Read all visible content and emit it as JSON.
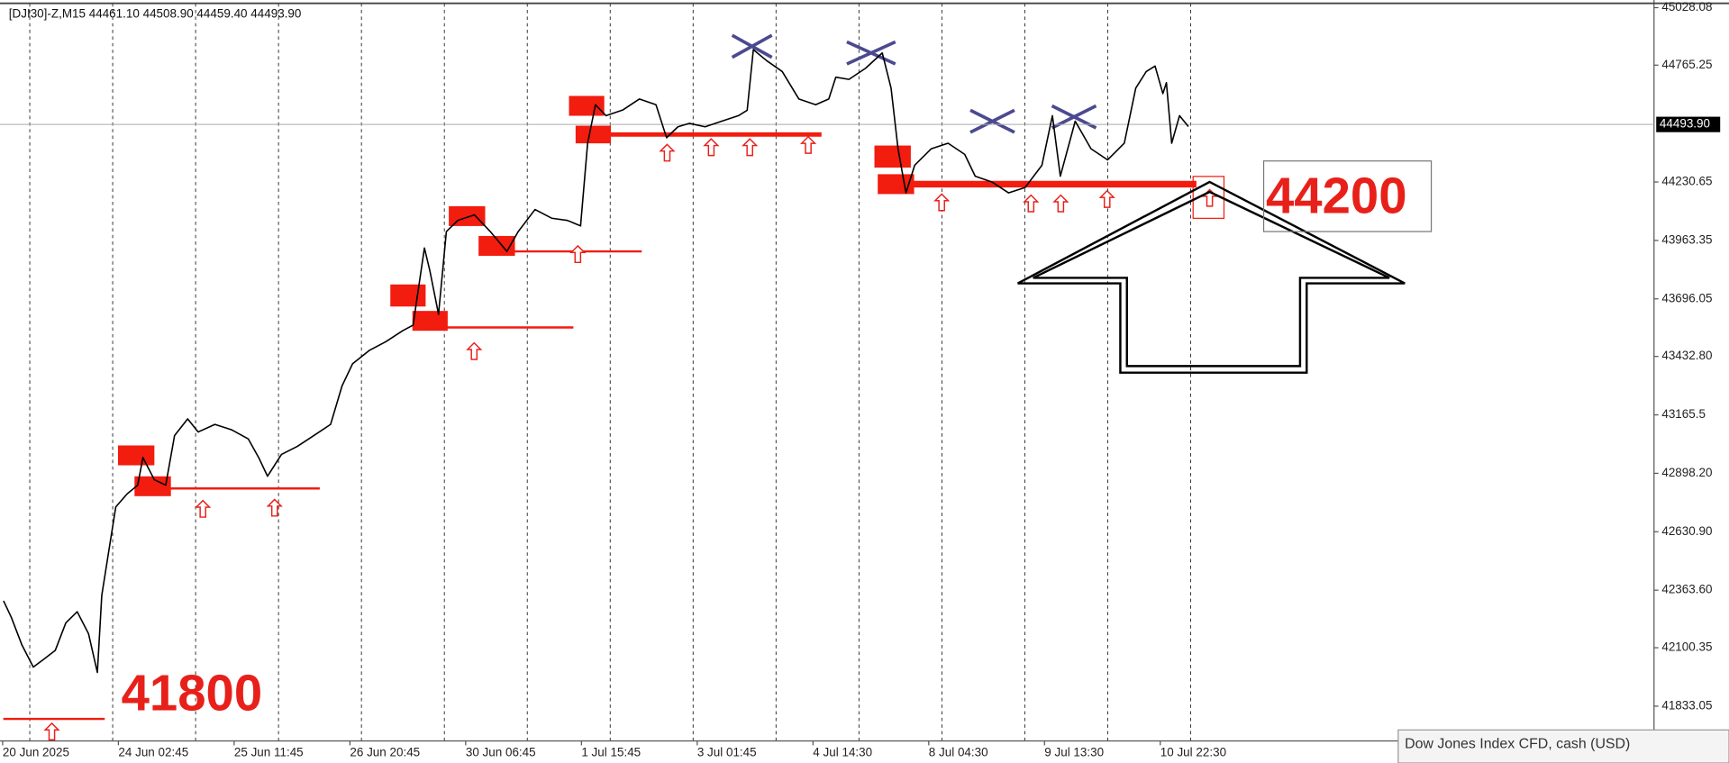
{
  "chart_data": {
    "type": "line",
    "header": "[DJI30]-Z,M15  44461.10 44508.90 44459.40 44493.90",
    "x": [
      4,
      13,
      25,
      38,
      50,
      63,
      75,
      88,
      101,
      111,
      116,
      126,
      132,
      145,
      157,
      163,
      176,
      189,
      199,
      214,
      226,
      245,
      264,
      283,
      295,
      305,
      321,
      339,
      358,
      377,
      390,
      402,
      421,
      440,
      459,
      471,
      484,
      490,
      500,
      509,
      522,
      541,
      559,
      578,
      591,
      610,
      629,
      647,
      662,
      670,
      679,
      691,
      710,
      729,
      748,
      760,
      773,
      786,
      804,
      823,
      842,
      852,
      859,
      874,
      892,
      911,
      930,
      945,
      953,
      968,
      987,
      1006,
      1016,
      1024,
      1033,
      1043,
      1062,
      1081,
      1100,
      1112,
      1131,
      1150,
      1169,
      1188,
      1200,
      1209,
      1226,
      1244,
      1263,
      1282,
      1295,
      1307,
      1317,
      1326,
      1330,
      1336,
      1345,
      1355
    ],
    "values": [
      42315,
      42239,
      42113,
      42012,
      42048,
      42088,
      42214,
      42265,
      42164,
      41987,
      42340,
      42592,
      42744,
      42804,
      42844,
      42970,
      42869,
      42844,
      43071,
      43147,
      43087,
      43122,
      43097,
      43056,
      42970,
      42885,
      42985,
      43021,
      43071,
      43122,
      43298,
      43399,
      43460,
      43500,
      43550,
      43576,
      43929,
      43828,
      43626,
      44004,
      44055,
      44080,
      44004,
      43913,
      44004,
      44105,
      44065,
      44055,
      44030,
      44408,
      44584,
      44534,
      44560,
      44610,
      44584,
      44433,
      44483,
      44499,
      44483,
      44509,
      44534,
      44559,
      44836,
      44786,
      44736,
      44610,
      44584,
      44610,
      44710,
      44700,
      44751,
      44821,
      44660,
      44383,
      44181,
      44307,
      44383,
      44408,
      44357,
      44257,
      44231,
      44181,
      44206,
      44307,
      44534,
      44257,
      44509,
      44383,
      44332,
      44408,
      44660,
      44736,
      44761,
      44635,
      44685,
      44408,
      44534,
      44484
    ],
    "color": "#000000",
    "xlim": [
      0,
      1886
    ],
    "xticks": [
      {
        "value": 3,
        "label": "20 Jun 2025"
      },
      {
        "value": 135,
        "label": "24 Jun 02:45"
      },
      {
        "value": 267,
        "label": "25 Jun 11:45"
      },
      {
        "value": 399,
        "label": "26 Jun 20:45"
      },
      {
        "value": 531,
        "label": "30 Jun 06:45"
      },
      {
        "value": 663,
        "label": "1 Jul 15:45"
      },
      {
        "value": 795,
        "label": "3 Jul 01:45"
      },
      {
        "value": 927,
        "label": "4 Jul 14:30"
      },
      {
        "value": 1059,
        "label": "8 Jul 04:30"
      },
      {
        "value": 1191,
        "label": "9 Jul 13:30"
      },
      {
        "value": 1323,
        "label": "10 Jul 22:30"
      }
    ],
    "ylim": [
      41674,
      45048
    ],
    "yticks": [
      45028.08,
      44765.25,
      44230.65,
      43963.35,
      43696.05,
      {
        "value": 43432.8,
        "label": "43432.80"
      },
      43165.5,
      {
        "value": 42898.2,
        "label": "42898.20"
      },
      {
        "value": 42630.9,
        "label": "42630.90"
      },
      {
        "value": 42363.6,
        "label": "42363.60"
      },
      42100.35,
      41833.05
    ],
    "current_price": {
      "value": 44493.9,
      "label": "44493.90"
    },
    "annotations": [
      "41800",
      "44200"
    ],
    "tooltip": "Dow Jones Index CFD, cash (USD)"
  }
}
